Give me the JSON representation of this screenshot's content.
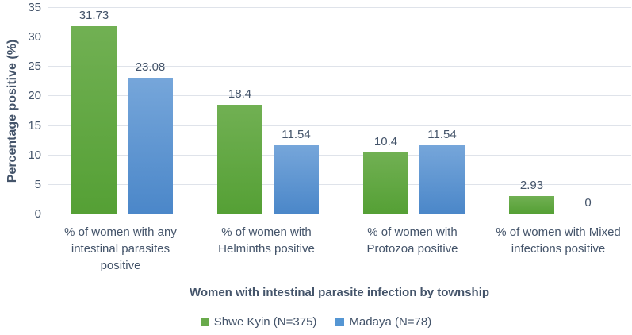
{
  "chart_data": {
    "type": "bar",
    "title": "",
    "categories": [
      "% of women with any intestinal parasites positive",
      "% of women with Helminths positive",
      "% of women with Protozoa positive",
      "% of women with Mixed infections positive"
    ],
    "series": [
      {
        "name": "Shwe Kyin (N=375)",
        "values": [
          31.73,
          18.4,
          10.4,
          2.93
        ],
        "color_top": "#71b053",
        "color_bottom": "#55a035",
        "legend_color": "#69aa4b"
      },
      {
        "name": "Madaya (N=78)",
        "values": [
          23.08,
          11.54,
          11.54,
          0
        ],
        "color_top": "#76a6da",
        "color_bottom": "#4b87c9",
        "legend_color": "#5596d3"
      }
    ],
    "data_labels": [
      [
        "31.73",
        "18.4",
        "10.4",
        "2.93"
      ],
      [
        "23.08",
        "11.54",
        "11.54",
        "0"
      ]
    ],
    "xlabel": "Women with intestinal parasite infection by township",
    "ylabel": "Percentage positive (%)",
    "ylim": [
      0,
      35
    ],
    "yticks": [
      0,
      5,
      10,
      15,
      20,
      25,
      30,
      35
    ],
    "grid": true,
    "legend_position": "bottom",
    "text_color": "#44546A",
    "gridline_color": "#dfe3ea"
  }
}
